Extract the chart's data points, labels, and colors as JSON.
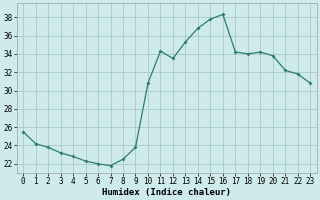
{
  "x": [
    0,
    1,
    2,
    3,
    4,
    5,
    6,
    7,
    8,
    9,
    10,
    11,
    12,
    13,
    14,
    15,
    16,
    17,
    18,
    19,
    20,
    21,
    22,
    23
  ],
  "y": [
    25.5,
    24.2,
    23.8,
    23.2,
    22.8,
    22.3,
    22.0,
    21.8,
    22.5,
    23.8,
    30.8,
    34.3,
    33.5,
    35.3,
    36.8,
    37.8,
    38.3,
    34.2,
    34.0,
    34.2,
    33.8,
    32.2,
    31.8,
    30.8
  ],
  "line_color": "#2e7d6e",
  "marker": "D",
  "marker_size": 2.0,
  "bg_color": "#ceeaea",
  "grid_color": "#aecece",
  "xlabel": "Humidex (Indice chaleur)",
  "xlim": [
    -0.5,
    23.5
  ],
  "ylim": [
    21.0,
    39.5
  ],
  "yticks": [
    22,
    24,
    26,
    28,
    30,
    32,
    34,
    36,
    38
  ],
  "xticks": [
    0,
    1,
    2,
    3,
    4,
    5,
    6,
    7,
    8,
    9,
    10,
    11,
    12,
    13,
    14,
    15,
    16,
    17,
    18,
    19,
    20,
    21,
    22,
    23
  ],
  "axis_fontsize": 5.5,
  "label_fontsize": 6.5
}
